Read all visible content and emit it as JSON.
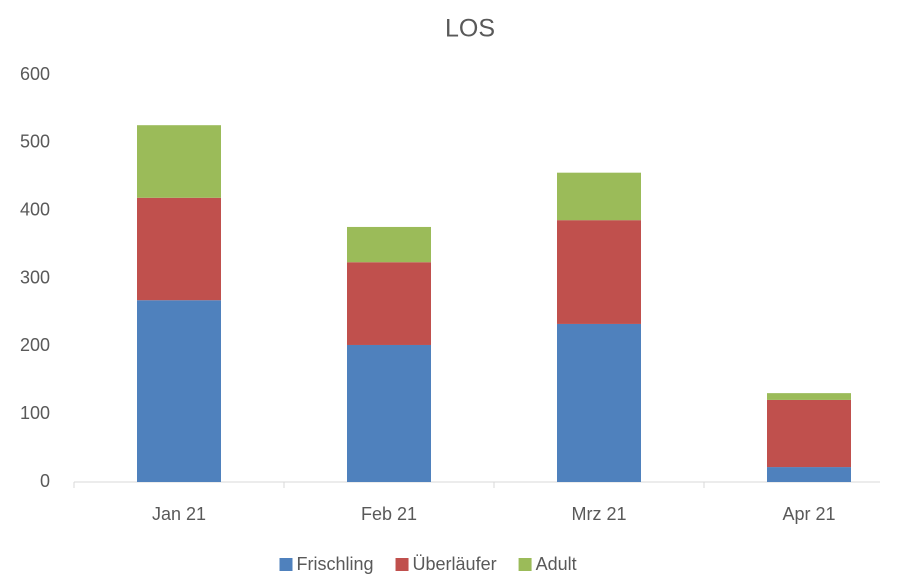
{
  "chart_data": {
    "type": "stacked_bar",
    "title": "LOS",
    "categories": [
      "Jan 21",
      "Feb 21",
      "Mrz 21",
      "Apr 21"
    ],
    "series": [
      {
        "name": "Frischling",
        "color": "#4f81bd",
        "values": [
          268,
          202,
          233,
          22
        ]
      },
      {
        "name": "Überläufer",
        "color": "#c0504d",
        "values": [
          151,
          122,
          153,
          99
        ]
      },
      {
        "name": "Adult",
        "color": "#9bbb59",
        "values": [
          107,
          52,
          70,
          10
        ]
      }
    ],
    "ylim": [
      0,
      600
    ],
    "yticks": [
      0,
      100,
      200,
      300,
      400,
      500,
      600
    ],
    "grid": false
  }
}
